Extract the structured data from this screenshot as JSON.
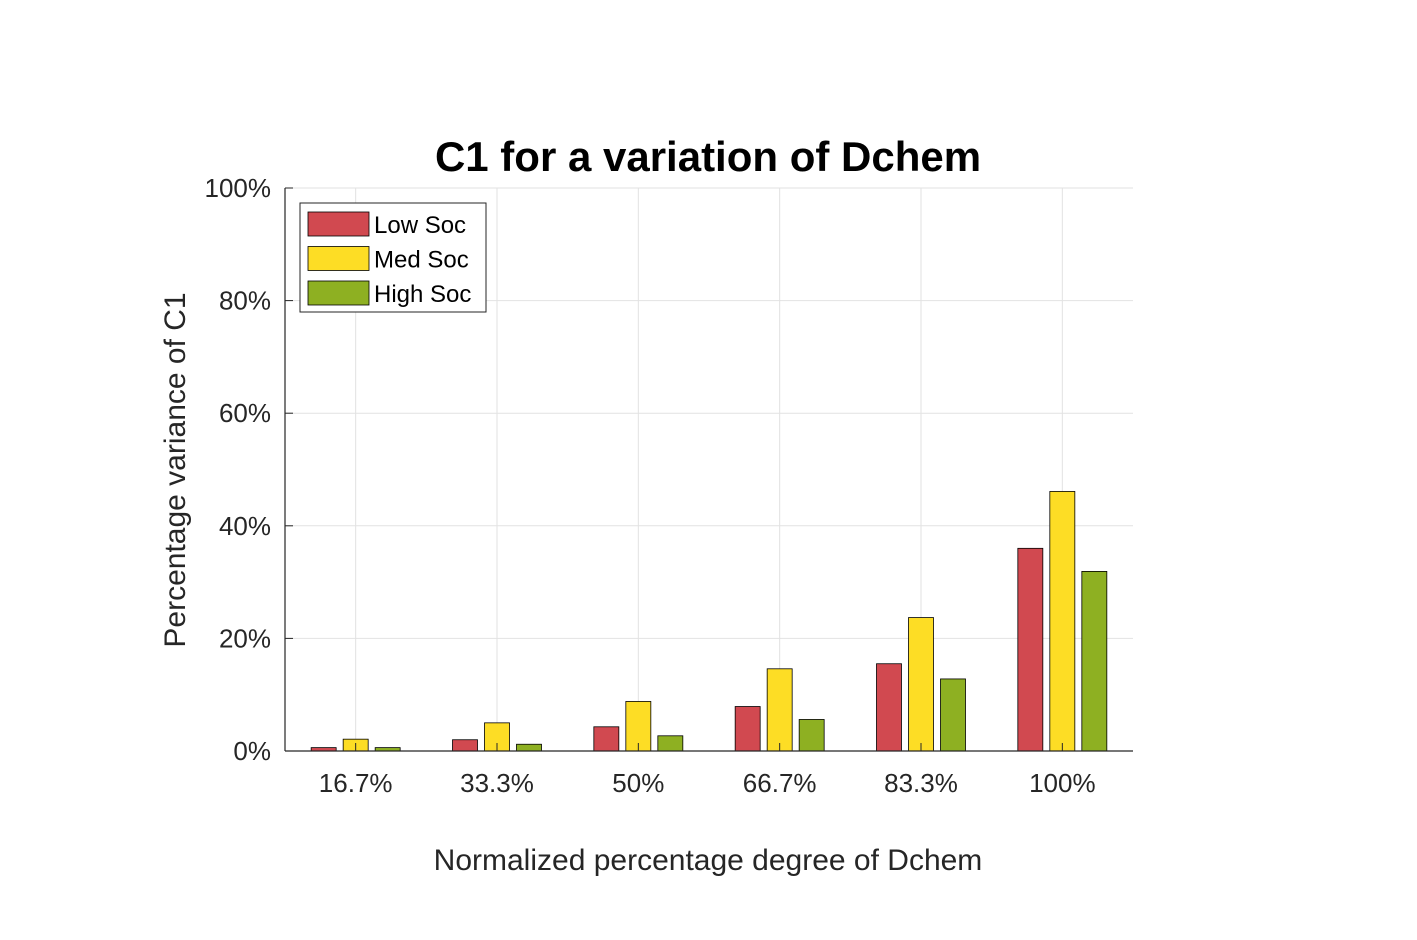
{
  "chart_data": {
    "type": "bar",
    "title": "C1 for a variation of Dchem",
    "xlabel": "Normalized percentage degree of Dchem",
    "ylabel": "Percentage variance of C1",
    "categories": [
      "16.7%",
      "33.3%",
      "50%",
      "66.7%",
      "83.3%",
      "100%"
    ],
    "ylim": [
      0,
      100
    ],
    "yticks": [
      0,
      20,
      40,
      60,
      80,
      100
    ],
    "ytick_labels": [
      "0%",
      "20%",
      "40%",
      "60%",
      "80%",
      "100%"
    ],
    "grid": true,
    "legend_position": "top-left",
    "series": [
      {
        "name": "Low Soc",
        "color": "#d14950",
        "values": [
          0.6,
          2.0,
          4.3,
          7.9,
          15.5,
          36.0
        ]
      },
      {
        "name": "Med Soc",
        "color": "#fddd25",
        "values": [
          2.1,
          5.0,
          8.8,
          14.6,
          23.7,
          46.1
        ]
      },
      {
        "name": "High Soc",
        "color": "#8eb022",
        "values": [
          0.6,
          1.2,
          2.7,
          5.6,
          12.8,
          31.9
        ]
      }
    ]
  }
}
